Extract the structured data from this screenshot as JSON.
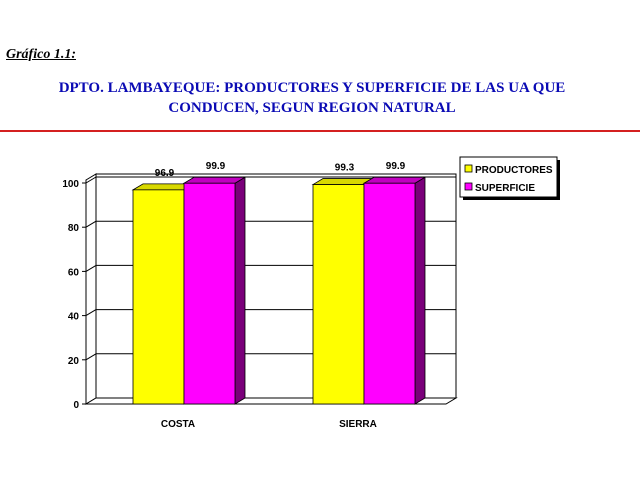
{
  "caption": "Gráfico 1.1:",
  "title_line1": "DPTO. LAMBAYEQUE: PRODUCTORES Y SUPERFICIE DE LAS UA QUE",
  "title_line2": "CONDUCEN, SEGUN REGION NATURAL",
  "colors": {
    "title": "#0a0ab4",
    "rule": "#d42020"
  },
  "chart_data": {
    "type": "bar",
    "title": "",
    "xlabel": "",
    "ylabel": "",
    "categories": [
      "COSTA",
      "SIERRA"
    ],
    "series": [
      {
        "name": "PRODUCTORES",
        "values": [
          96.9,
          99.3
        ],
        "color": "#ffff00",
        "side_color": "#a0a000",
        "top_color": "#d8d800"
      },
      {
        "name": "SUPERFICIE",
        "values": [
          99.9,
          99.9
        ],
        "color": "#ff00ff",
        "side_color": "#7a007a",
        "top_color": "#c000c0"
      }
    ],
    "data_labels": [
      "96.9",
      "99.9",
      "99.3",
      "99.9"
    ],
    "ylim": [
      0,
      100
    ],
    "yticks": [
      0,
      20,
      40,
      60,
      80,
      100
    ],
    "grid": true,
    "legend_position": "top-right",
    "style": "3d"
  }
}
